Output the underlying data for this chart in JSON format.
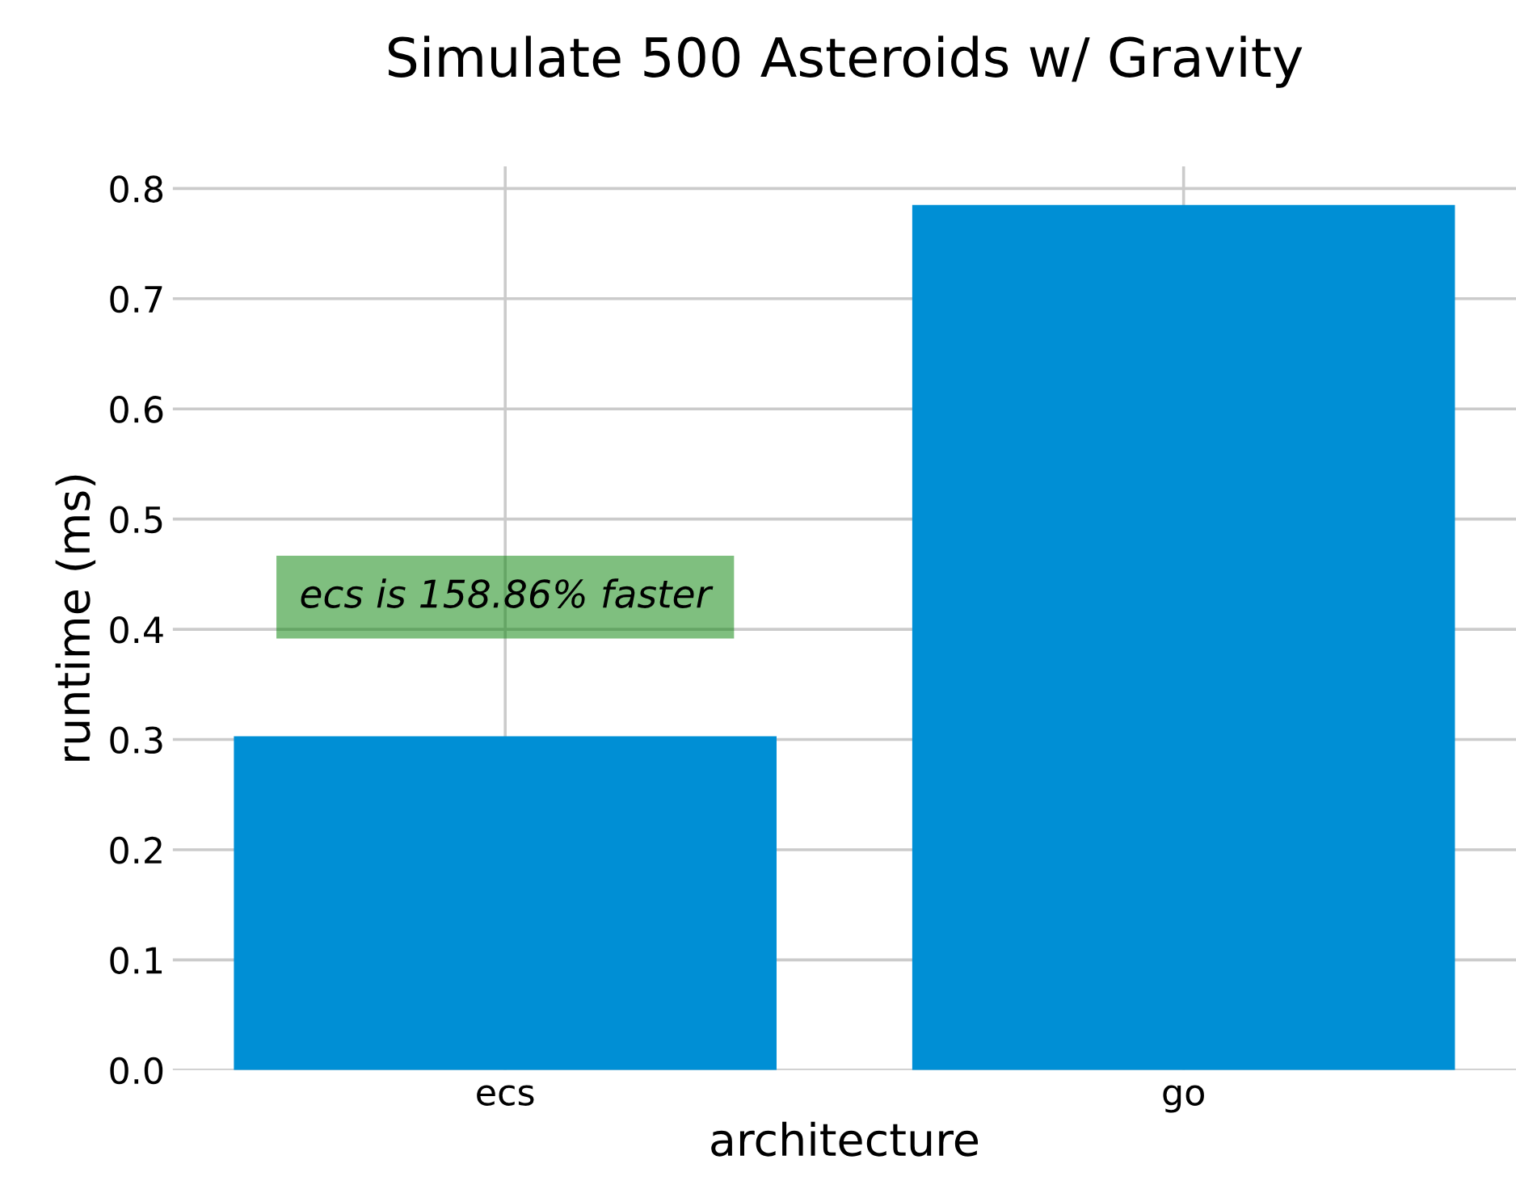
{
  "chart_data": {
    "type": "bar",
    "title": "Simulate 500 Asteroids w/ Gravity",
    "xlabel": "architecture",
    "ylabel": "runtime (ms)",
    "categories": [
      "ecs",
      "go"
    ],
    "values": [
      0.303,
      0.785
    ],
    "color": "#008fd5",
    "ylim": [
      0,
      0.82
    ],
    "yticks": [
      {
        "value": 0,
        "label": "0.0"
      },
      0.1,
      0.2,
      0.3,
      0.4,
      0.5,
      0.6,
      0.7,
      0.8
    ],
    "grid": true,
    "annotations": [
      "ecs is 158.86% faster"
    ]
  }
}
